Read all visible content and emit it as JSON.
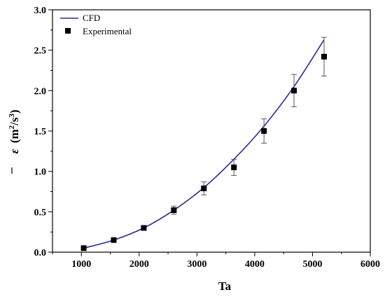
{
  "chart_data": {
    "type": "line",
    "xlabel": "Ta",
    "ylabel_symbol": "ε",
    "ylabel_units": "(m",
    "ylabel_units_sup1": "2",
    "ylabel_units_mid": "/s",
    "ylabel_units_sup2": "3",
    "ylabel_units_end": ")",
    "xlim": [
      500,
      6000
    ],
    "ylim": [
      0.0,
      3.0
    ],
    "x_ticks": [
      1000,
      2000,
      3000,
      4000,
      5000,
      6000
    ],
    "x_tick_labels": [
      "1000",
      "2000",
      "3000",
      "4000",
      "5000",
      "6000"
    ],
    "y_ticks": [
      0.0,
      0.5,
      1.0,
      1.5,
      2.0,
      2.5,
      3.0
    ],
    "y_tick_labels": [
      "0.0",
      "0.5",
      "1.0",
      "1.5",
      "2.0",
      "2.5",
      "3.0"
    ],
    "grid": false,
    "legend_position": "top-left",
    "series": [
      {
        "name": "CFD",
        "style": "line",
        "color": "#2b2b9a",
        "x": [
          1040,
          1560,
          2080,
          2600,
          3120,
          3640,
          4160,
          4680,
          5200
        ],
        "y": [
          0.05,
          0.15,
          0.3,
          0.52,
          0.8,
          1.15,
          1.56,
          2.05,
          2.63
        ]
      },
      {
        "name": "Experimental",
        "style": "scatter",
        "color": "#000000",
        "x": [
          1040,
          1560,
          2080,
          2600,
          3120,
          3640,
          4160,
          4680,
          5200
        ],
        "y": [
          0.05,
          0.15,
          0.3,
          0.52,
          0.79,
          1.05,
          1.5,
          2.0,
          2.42
        ],
        "err": [
          0.0,
          0.0,
          0.0,
          0.05,
          0.08,
          0.1,
          0.15,
          0.2,
          0.24
        ]
      }
    ]
  }
}
